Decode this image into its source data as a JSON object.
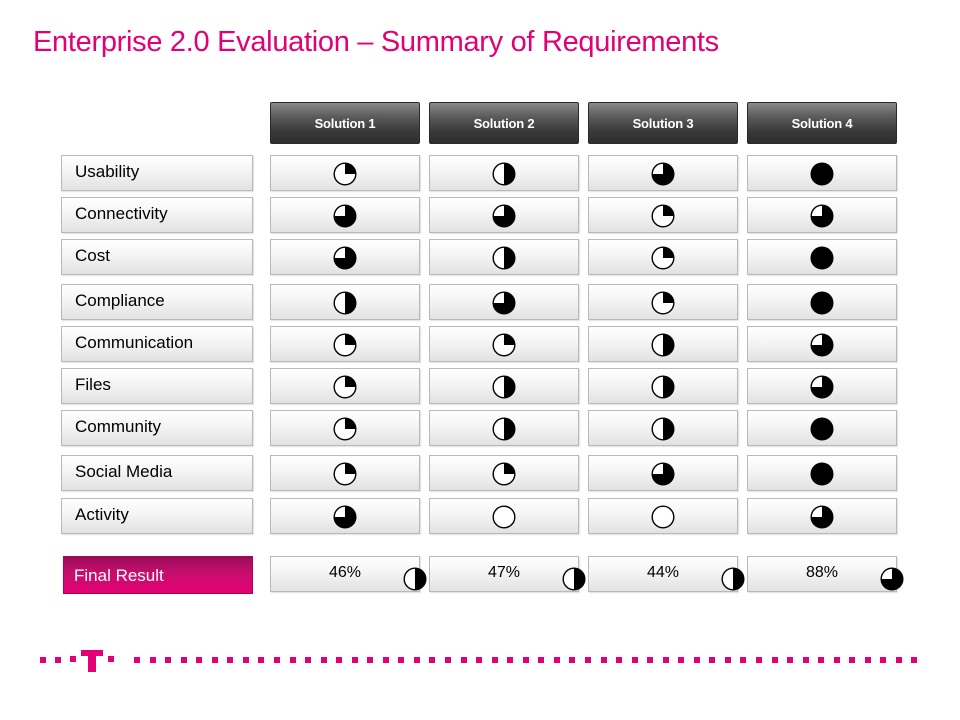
{
  "title": "Enterprise 2.0 Evaluation – Summary of Requirements",
  "solutions": [
    "Solution 1",
    "Solution 2",
    "Solution 3",
    "Solution 4"
  ],
  "rows": [
    {
      "label": "Usability",
      "ratings": [
        0.25,
        0.5,
        0.75,
        1.0
      ]
    },
    {
      "label": "Connectivity",
      "ratings": [
        0.75,
        0.75,
        0.25,
        0.75
      ]
    },
    {
      "label": "Cost",
      "ratings": [
        0.75,
        0.5,
        0.25,
        1.0
      ]
    },
    {
      "label": "Compliance",
      "ratings": [
        0.5,
        0.75,
        0.25,
        1.0
      ]
    },
    {
      "label": "Communication",
      "ratings": [
        0.25,
        0.25,
        0.5,
        0.75
      ]
    },
    {
      "label": "Files",
      "ratings": [
        0.25,
        0.5,
        0.5,
        0.75
      ]
    },
    {
      "label": "Community",
      "ratings": [
        0.25,
        0.5,
        0.5,
        1.0
      ]
    },
    {
      "label": "Social Media",
      "ratings": [
        0.25,
        0.25,
        0.75,
        1.0
      ]
    },
    {
      "label": "Activity",
      "ratings": [
        0.75,
        0.0,
        0.0,
        0.75
      ]
    }
  ],
  "final_result": {
    "label": "Final Result",
    "values": [
      "46%",
      "47%",
      "44%",
      "88%"
    ],
    "ratings": [
      0.5,
      0.5,
      0.5,
      0.75
    ]
  },
  "logo": {
    "letter": "T"
  },
  "colors": {
    "brand": "#e20074",
    "header": "#3a3a3a"
  }
}
